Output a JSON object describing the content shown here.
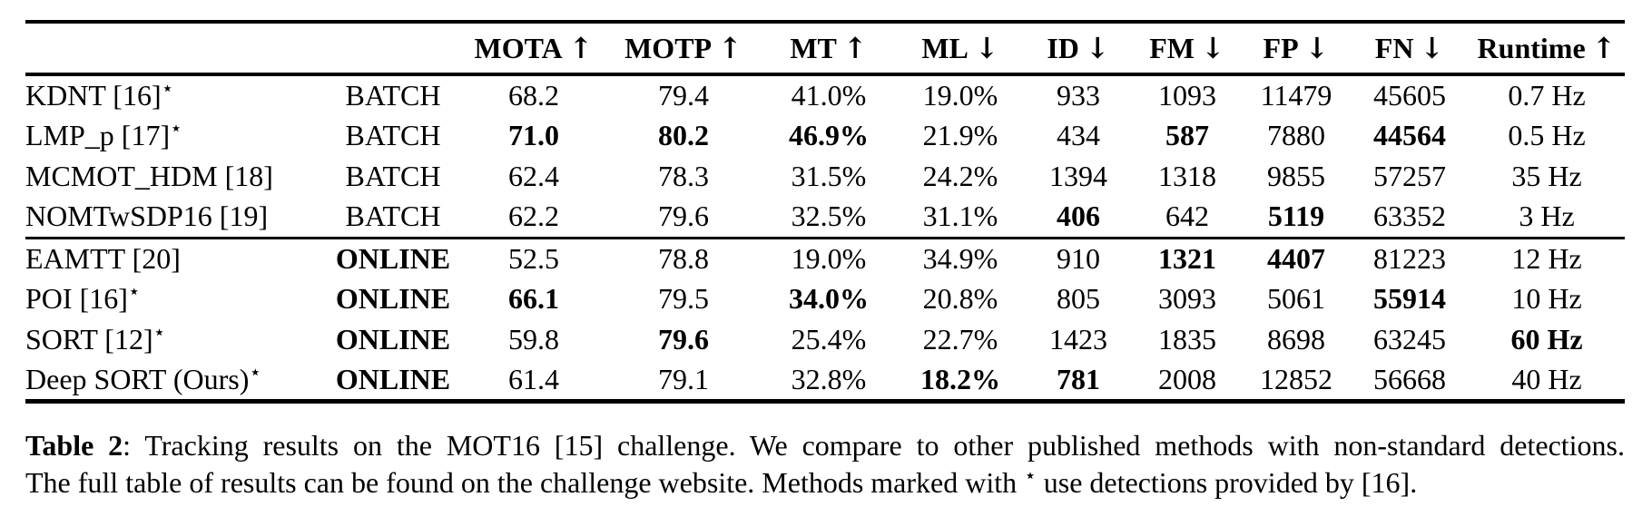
{
  "table": {
    "header": {
      "method_col": "",
      "mode_col": "",
      "metrics": [
        {
          "label": "MOTA",
          "dir": "↑"
        },
        {
          "label": "MOTP",
          "dir": "↑"
        },
        {
          "label": "MT",
          "dir": "↑"
        },
        {
          "label": "ML",
          "dir": "↓"
        },
        {
          "label": "ID",
          "dir": "↓"
        },
        {
          "label": "FM",
          "dir": "↓"
        },
        {
          "label": "FP",
          "dir": "↓"
        },
        {
          "label": "FN",
          "dir": "↓"
        },
        {
          "label": "Runtime",
          "dir": "↑"
        }
      ]
    },
    "sections": [
      {
        "name": "batch",
        "rows": [
          {
            "method": "KDNT [16]",
            "star": true,
            "mode": "BATCH",
            "mode_bold": false,
            "cells": [
              {
                "t": "68.2",
                "b": false
              },
              {
                "t": "79.4",
                "b": false
              },
              {
                "t": "41.0%",
                "b": false
              },
              {
                "t": "19.0%",
                "b": false
              },
              {
                "t": "933",
                "b": false
              },
              {
                "t": "1093",
                "b": false
              },
              {
                "t": "11479",
                "b": false
              },
              {
                "t": "45605",
                "b": false
              },
              {
                "t": "0.7 Hz",
                "b": false
              }
            ]
          },
          {
            "method": "LMP_p [17]",
            "star": true,
            "mode": "BATCH",
            "mode_bold": false,
            "cells": [
              {
                "t": "71.0",
                "b": true
              },
              {
                "t": "80.2",
                "b": true
              },
              {
                "t": "46.9%",
                "b": true
              },
              {
                "t": "21.9%",
                "b": false
              },
              {
                "t": "434",
                "b": false
              },
              {
                "t": "587",
                "b": true
              },
              {
                "t": "7880",
                "b": false
              },
              {
                "t": "44564",
                "b": true
              },
              {
                "t": "0.5 Hz",
                "b": false
              }
            ]
          },
          {
            "method": "MCMOT_HDM [18]",
            "star": false,
            "mode": "BATCH",
            "mode_bold": false,
            "cells": [
              {
                "t": "62.4",
                "b": false
              },
              {
                "t": "78.3",
                "b": false
              },
              {
                "t": "31.5%",
                "b": false
              },
              {
                "t": "24.2%",
                "b": false
              },
              {
                "t": "1394",
                "b": false
              },
              {
                "t": "1318",
                "b": false
              },
              {
                "t": "9855",
                "b": false
              },
              {
                "t": "57257",
                "b": false
              },
              {
                "t": "35 Hz",
                "b": false
              }
            ]
          },
          {
            "method": "NOMTwSDP16 [19]",
            "star": false,
            "mode": "BATCH",
            "mode_bold": false,
            "cells": [
              {
                "t": "62.2",
                "b": false
              },
              {
                "t": "79.6",
                "b": false
              },
              {
                "t": "32.5%",
                "b": false
              },
              {
                "t": "31.1%",
                "b": false
              },
              {
                "t": "406",
                "b": true
              },
              {
                "t": "642",
                "b": false
              },
              {
                "t": "5119",
                "b": true
              },
              {
                "t": "63352",
                "b": false
              },
              {
                "t": "3 Hz",
                "b": false
              }
            ]
          }
        ]
      },
      {
        "name": "online",
        "rows": [
          {
            "method": "EAMTT [20]",
            "star": false,
            "mode": "ONLINE",
            "mode_bold": true,
            "cells": [
              {
                "t": "52.5",
                "b": false
              },
              {
                "t": "78.8",
                "b": false
              },
              {
                "t": "19.0%",
                "b": false
              },
              {
                "t": "34.9%",
                "b": false
              },
              {
                "t": "910",
                "b": false
              },
              {
                "t": "1321",
                "b": true
              },
              {
                "t": "4407",
                "b": true
              },
              {
                "t": "81223",
                "b": false
              },
              {
                "t": "12 Hz",
                "b": false
              }
            ]
          },
          {
            "method": "POI [16]",
            "star": true,
            "mode": "ONLINE",
            "mode_bold": true,
            "cells": [
              {
                "t": "66.1",
                "b": true
              },
              {
                "t": "79.5",
                "b": false
              },
              {
                "t": "34.0%",
                "b": true
              },
              {
                "t": "20.8%",
                "b": false
              },
              {
                "t": "805",
                "b": false
              },
              {
                "t": "3093",
                "b": false
              },
              {
                "t": "5061",
                "b": false
              },
              {
                "t": "55914",
                "b": true
              },
              {
                "t": "10 Hz",
                "b": false
              }
            ]
          },
          {
            "method": "SORT [12]",
            "star": true,
            "mode": "ONLINE",
            "mode_bold": true,
            "cells": [
              {
                "t": "59.8",
                "b": false
              },
              {
                "t": "79.6",
                "b": true
              },
              {
                "t": "25.4%",
                "b": false
              },
              {
                "t": "22.7%",
                "b": false
              },
              {
                "t": "1423",
                "b": false
              },
              {
                "t": "1835",
                "b": false
              },
              {
                "t": "8698",
                "b": false
              },
              {
                "t": "63245",
                "b": false
              },
              {
                "t": "60 Hz",
                "b": true
              }
            ]
          },
          {
            "method": "Deep SORT (Ours)",
            "star": true,
            "mode": "ONLINE",
            "mode_bold": true,
            "cells": [
              {
                "t": "61.4",
                "b": false
              },
              {
                "t": "79.1",
                "b": false
              },
              {
                "t": "32.8%",
                "b": false
              },
              {
                "t": "18.2%",
                "b": true
              },
              {
                "t": "781",
                "b": true
              },
              {
                "t": "2008",
                "b": false
              },
              {
                "t": "12852",
                "b": false
              },
              {
                "t": "56668",
                "b": false
              },
              {
                "t": "40 Hz",
                "b": false
              }
            ]
          }
        ]
      }
    ]
  },
  "caption": {
    "label": "Table 2",
    "line1_rest": ": Tracking results on the MOT16 [15] challenge. We compare to other published methods with non-standard detections.",
    "line2_pre": "The full table of results can be found on the challenge website. Methods marked with ",
    "star": "⋆",
    "line2_post": " use detections provided by [16]."
  }
}
